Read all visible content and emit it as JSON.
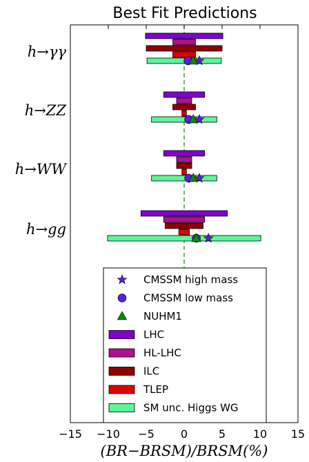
{
  "chart_data": {
    "type": "bar",
    "orientation": "horizontal",
    "title": "Best Fit Predictions",
    "xlabel": "(BR−BR_SM)/BR_SM(%)",
    "xlabel_display": "(BR−BRSM)/BRSM(%)",
    "xlim": [
      -15,
      15
    ],
    "xticks": [
      -15,
      -10,
      -5,
      0,
      5,
      10,
      15
    ],
    "xtick_labels": [
      "−15",
      "−10",
      "−5",
      "0",
      "5",
      "10",
      "15"
    ],
    "reference_line": {
      "x": 0,
      "style": "dashed",
      "color": "#2a8a2a"
    },
    "categories": [
      "h→γγ",
      "h→ZZ",
      "h→WW",
      "h→gg"
    ],
    "bar_series": [
      {
        "name": "LHC",
        "color": "#8000d0",
        "half_widths": [
          5.1,
          2.7,
          2.7,
          5.7
        ]
      },
      {
        "name": "HL-LHC",
        "color": "#b0108e",
        "half_widths": [
          1.5,
          1.0,
          1.0,
          2.7
        ]
      },
      {
        "name": "ILC",
        "color": "#900000",
        "half_widths": [
          5.0,
          1.5,
          1.0,
          2.5
        ]
      },
      {
        "name": "TLEP",
        "color": "#e00000",
        "half_widths": [
          1.5,
          0.3,
          0.3,
          0.7
        ]
      },
      {
        "name": "SM unc. Higgs WG",
        "color": "#5cf59a",
        "half_widths": [
          4.9,
          4.3,
          4.3,
          10.1
        ]
      }
    ],
    "marker_series": [
      {
        "name": "CMSSM high mass",
        "marker": "star",
        "color": "#5a1ee0",
        "x": [
          2.0,
          2.0,
          2.0,
          3.2
        ]
      },
      {
        "name": "CMSSM low mass",
        "marker": "circle",
        "color": "#5a1ee0",
        "x": [
          0.5,
          0.6,
          0.6,
          1.6
        ]
      },
      {
        "name": "NUHM1",
        "marker": "triangle",
        "color": "#0a8a0a",
        "x": [
          1.2,
          1.2,
          1.2,
          1.6
        ]
      }
    ],
    "legend": {
      "placement": "lower-center",
      "entries": [
        "CMSSM high mass",
        "CMSSM low mass",
        "NUHM1",
        "LHC",
        "HL-LHC",
        "ILC",
        "TLEP",
        "SM unc. Higgs WG"
      ]
    },
    "grid": false
  }
}
